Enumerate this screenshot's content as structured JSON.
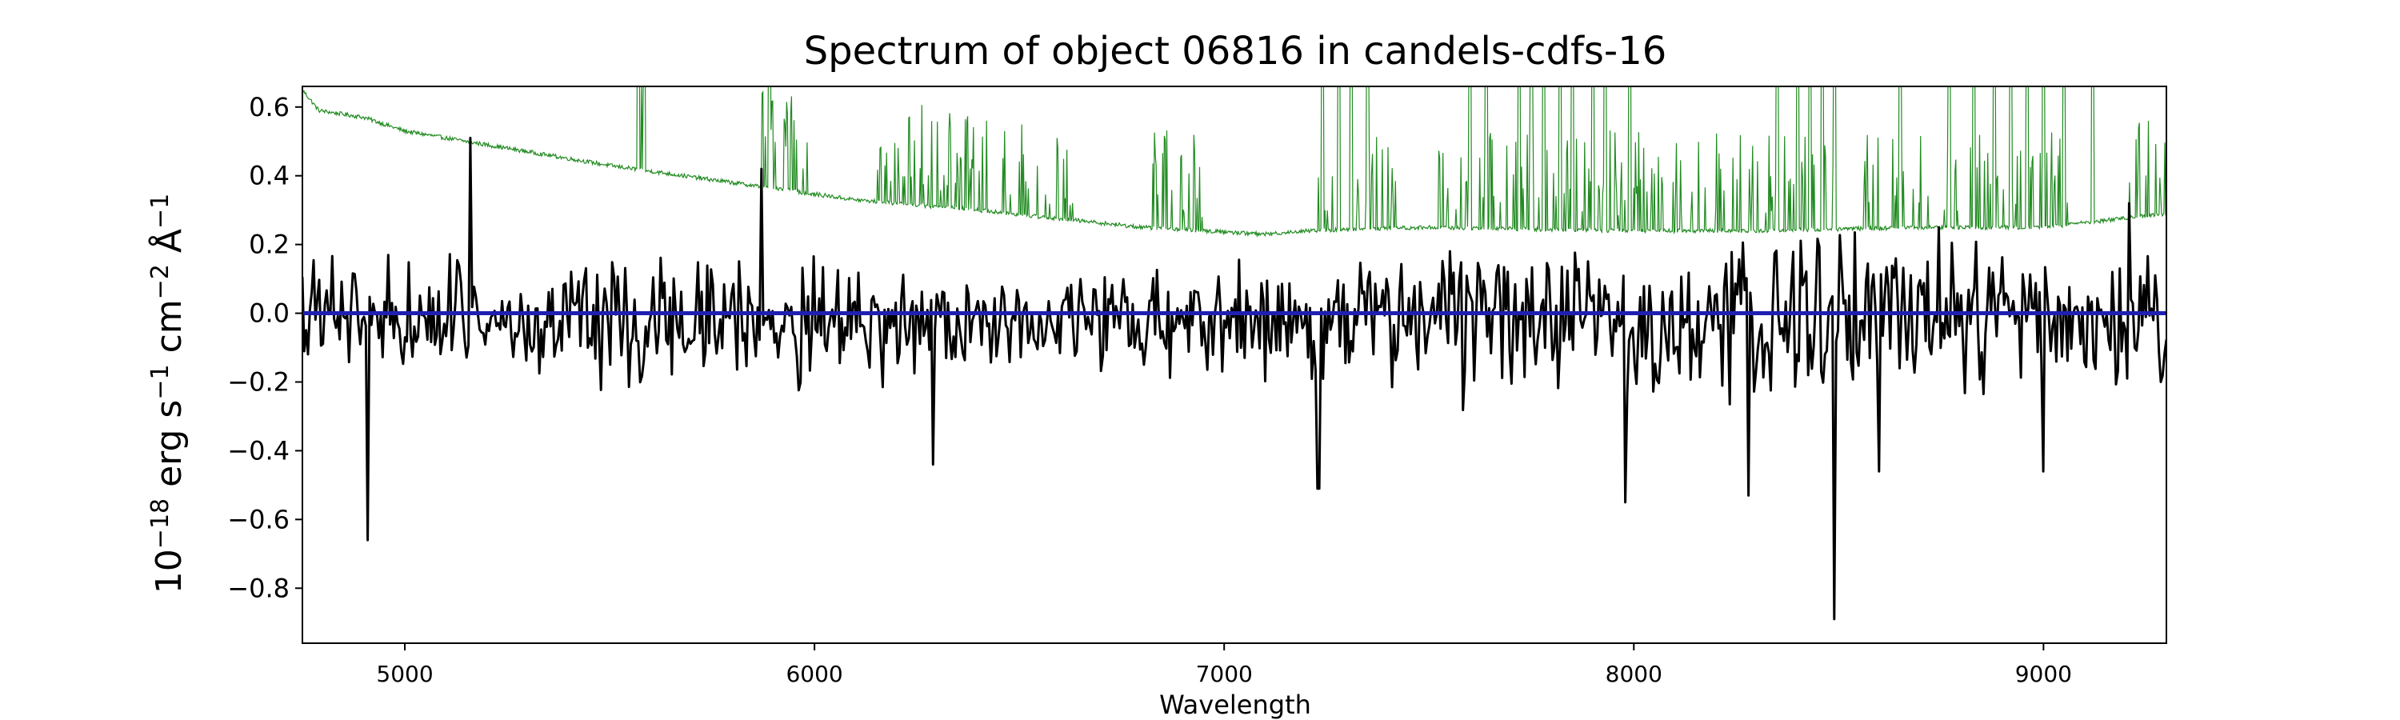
{
  "chart_data": {
    "type": "line",
    "title": "Spectrum of object 06816 in candels-cdfs-16",
    "xlabel": "Wavelength",
    "ylabel": {
      "base": "10",
      "exp1": "−18",
      "mid1": " erg s",
      "exp2": "−1",
      "mid2": " cm",
      "exp3": "−2",
      "mid3": " Å",
      "exp4": "−1"
    },
    "xlim": [
      4750,
      9300
    ],
    "ylim": [
      -0.96,
      0.66
    ],
    "xticks": [
      5000,
      6000,
      7000,
      8000,
      9000
    ],
    "xtick_labels": [
      "5000",
      "6000",
      "7000",
      "8000",
      "9000"
    ],
    "yticks": [
      -0.8,
      -0.6,
      -0.4,
      -0.2,
      0.0,
      0.2,
      0.4,
      0.6
    ],
    "ytick_labels": [
      "−0.8",
      "−0.6",
      "−0.4",
      "−0.2",
      "0.0",
      "0.2",
      "0.4",
      "0.6"
    ],
    "grid": false,
    "series": [
      {
        "role": "flux",
        "color": "#000000",
        "x_start": 4750,
        "x_end": 9300,
        "n_points": 1000,
        "seed": 6816,
        "noise_profile": [
          [
            4750,
            0.16
          ],
          [
            5200,
            0.15
          ],
          [
            6000,
            0.14
          ],
          [
            6800,
            0.11
          ],
          [
            7200,
            0.15
          ],
          [
            7600,
            0.17
          ],
          [
            8000,
            0.18
          ],
          [
            8300,
            0.2
          ],
          [
            8700,
            0.17
          ],
          [
            9300,
            0.16
          ]
        ],
        "features": [
          {
            "x": 4910,
            "y": -0.66
          },
          {
            "x": 5160,
            "y": 0.51
          },
          {
            "x": 5870,
            "y": 0.42
          },
          {
            "x": 6290,
            "y": -0.44
          },
          {
            "x": 7230,
            "y": -0.51
          },
          {
            "x": 7980,
            "y": -0.55
          },
          {
            "x": 8280,
            "y": -0.53
          },
          {
            "x": 8490,
            "y": -0.89
          },
          {
            "x": 8600,
            "y": -0.46
          },
          {
            "x": 9000,
            "y": -0.46
          },
          {
            "x": 9210,
            "y": 0.32
          }
        ]
      },
      {
        "role": "noise",
        "color": "#228b22",
        "continuum": [
          [
            4750,
            0.65
          ],
          [
            4790,
            0.59
          ],
          [
            4900,
            0.57
          ],
          [
            5000,
            0.53
          ],
          [
            5200,
            0.49
          ],
          [
            5500,
            0.43
          ],
          [
            5800,
            0.38
          ],
          [
            6100,
            0.33
          ],
          [
            6400,
            0.3
          ],
          [
            6800,
            0.25
          ],
          [
            7100,
            0.23
          ],
          [
            7200,
            0.24
          ],
          [
            7500,
            0.25
          ],
          [
            8000,
            0.24
          ],
          [
            8300,
            0.24
          ],
          [
            8700,
            0.25
          ],
          [
            9000,
            0.25
          ],
          [
            9300,
            0.29
          ]
        ],
        "line_forests": [
          [
            5570,
            5590
          ],
          [
            5870,
            6000
          ],
          [
            6150,
            6420
          ],
          [
            6460,
            6640
          ],
          [
            6820,
            6960
          ],
          [
            7230,
            7420
          ],
          [
            7520,
            8270
          ],
          [
            8270,
            8500
          ],
          [
            8550,
            8720
          ],
          [
            8750,
            9060
          ],
          [
            9200,
            9300
          ]
        ],
        "tall_lines": [
          5570,
          5585,
          5890,
          7240,
          7280,
          7310,
          7350,
          7600,
          7640,
          7720,
          7750,
          7780,
          7820,
          7850,
          7900,
          7930,
          7990,
          8350,
          8400,
          8430,
          8460,
          8490,
          8650,
          8770,
          8830,
          8880,
          8920,
          8960,
          9000,
          9050,
          9120
        ]
      },
      {
        "role": "continuum-model",
        "color": "#1f1fb4",
        "x": [
          4750,
          9300
        ],
        "y": [
          0.0,
          0.0
        ]
      }
    ]
  }
}
